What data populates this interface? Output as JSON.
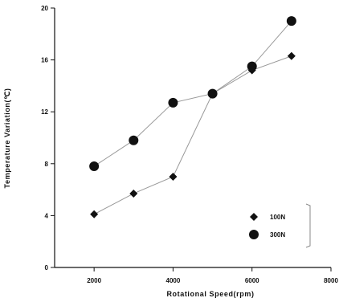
{
  "chart_data": {
    "type": "line",
    "title": "",
    "xlabel": "Rotational Speed(rpm)",
    "ylabel": "Temperature Variation(℃)",
    "xlim": [
      1000,
      8000
    ],
    "ylim": [
      0,
      20
    ],
    "xticks": [
      "2000",
      "4000",
      "6000",
      "8000"
    ],
    "yticks": [
      "0",
      "4",
      "8",
      "12",
      "16",
      "20"
    ],
    "grid": false,
    "legend_position": "bottom-right",
    "series": [
      {
        "name": "100N",
        "marker": "diamond",
        "color": "#111111",
        "x": [
          2000,
          3000,
          4000,
          5000,
          6000,
          7000
        ],
        "y": [
          4.1,
          5.7,
          7.0,
          13.4,
          15.2,
          16.3
        ]
      },
      {
        "name": "300N",
        "marker": "circle",
        "color": "#111111",
        "x": [
          2000,
          3000,
          4000,
          5000,
          6000,
          7000
        ],
        "y": [
          7.8,
          9.8,
          12.7,
          13.4,
          15.5,
          19.0
        ]
      }
    ]
  }
}
